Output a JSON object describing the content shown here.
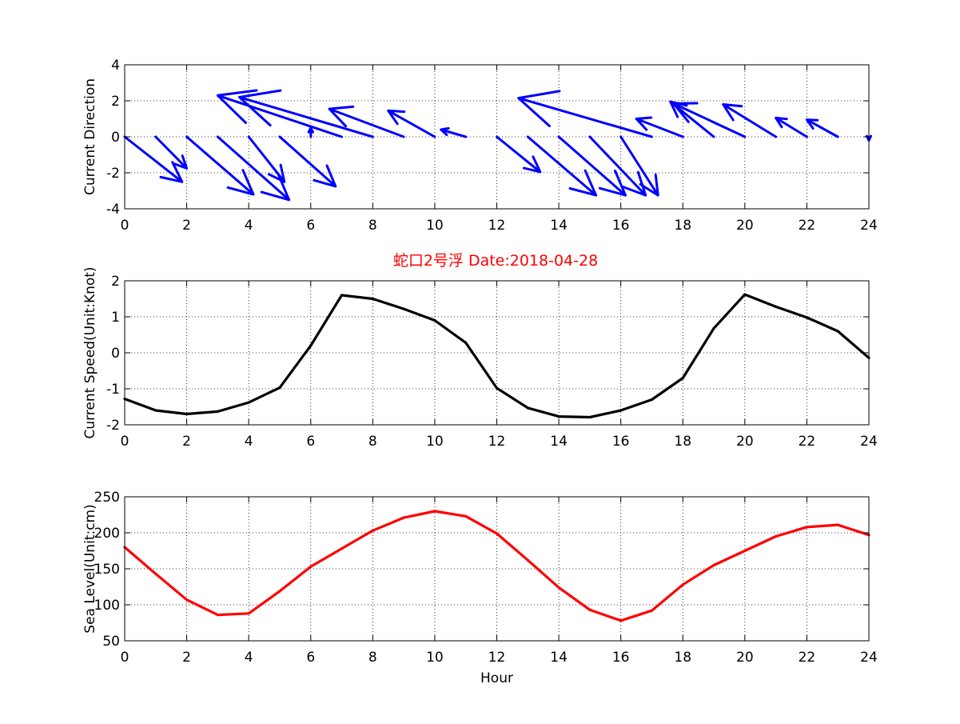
{
  "figure": {
    "title": "蛇口2号浮   Date:2018-04-28"
  },
  "chart_data": [
    {
      "type": "quiver",
      "ylabel": "Current Direction",
      "xlim": [
        0,
        24
      ],
      "ylim": [
        -4,
        4
      ],
      "x_ticks": [
        "0",
        "2",
        "4",
        "6",
        "8",
        "10",
        "12",
        "14",
        "16",
        "18",
        "20",
        "22",
        "24"
      ],
      "y_ticks": [
        "-4",
        "-2",
        "0",
        "2",
        "4"
      ],
      "grid": true,
      "color": "#0000ff",
      "vectors": [
        {
          "x": 0,
          "u": 1.85,
          "v": -2.5
        },
        {
          "x": 1,
          "u": 1.0,
          "v": -1.75
        },
        {
          "x": 2,
          "u": 2.15,
          "v": -3.2
        },
        {
          "x": 3,
          "u": 2.3,
          "v": -3.5
        },
        {
          "x": 4,
          "u": 1.15,
          "v": -2.5
        },
        {
          "x": 5,
          "u": 1.8,
          "v": -2.75
        },
        {
          "x": 6,
          "u": 0.0,
          "v": 0.5
        },
        {
          "x": 7,
          "u": -4.0,
          "v": 2.3
        },
        {
          "x": 8,
          "u": -4.3,
          "v": 2.2
        },
        {
          "x": 9,
          "u": -2.4,
          "v": 1.55
        },
        {
          "x": 10,
          "u": -1.5,
          "v": 1.45
        },
        {
          "x": 11,
          "u": -0.8,
          "v": 0.4
        },
        {
          "x": 12,
          "u": 1.4,
          "v": -1.95
        },
        {
          "x": 13,
          "u": 2.2,
          "v": -3.25
        },
        {
          "x": 14,
          "u": 2.15,
          "v": -3.25
        },
        {
          "x": 15,
          "u": 1.8,
          "v": -3.25
        },
        {
          "x": 16,
          "u": 1.2,
          "v": -3.25
        },
        {
          "x": 17,
          "u": -4.3,
          "v": 2.15
        },
        {
          "x": 18,
          "u": -1.5,
          "v": 1.0
        },
        {
          "x": 19,
          "u": -1.4,
          "v": 1.95
        },
        {
          "x": 20,
          "u": -2.3,
          "v": 1.85
        },
        {
          "x": 21,
          "u": -1.7,
          "v": 1.8
        },
        {
          "x": 22,
          "u": -1.0,
          "v": 1.05
        },
        {
          "x": 23,
          "u": -1.0,
          "v": 0.95
        },
        {
          "x": 24,
          "u": 0.0,
          "v": -0.2
        }
      ]
    },
    {
      "type": "line",
      "ylabel": "Current Speed(Unit:Knot)",
      "xlim": [
        0,
        24
      ],
      "ylim": [
        -2,
        2
      ],
      "x_ticks": [
        "0",
        "2",
        "4",
        "6",
        "8",
        "10",
        "12",
        "14",
        "16",
        "18",
        "20",
        "22",
        "24"
      ],
      "y_ticks": [
        "-2",
        "-1",
        "0",
        "1",
        "2"
      ],
      "grid": true,
      "color": "#000000",
      "x": [
        0,
        1,
        2,
        3,
        4,
        5,
        6,
        7,
        8,
        9,
        10,
        11,
        12,
        13,
        14,
        15,
        16,
        17,
        18,
        19,
        20,
        21,
        22,
        23,
        24
      ],
      "values": [
        -1.28,
        -1.6,
        -1.7,
        -1.63,
        -1.38,
        -0.97,
        0.2,
        1.6,
        1.5,
        1.22,
        0.9,
        0.28,
        -0.98,
        -1.53,
        -1.77,
        -1.79,
        -1.6,
        -1.3,
        -0.7,
        0.68,
        1.62,
        1.28,
        0.98,
        0.6,
        -0.14
      ]
    },
    {
      "type": "line",
      "xlabel": "Hour",
      "ylabel": "Sea Level(Unit:cm)",
      "xlim": [
        0,
        24
      ],
      "ylim": [
        50,
        250
      ],
      "x_ticks": [
        "0",
        "2",
        "4",
        "6",
        "8",
        "10",
        "12",
        "14",
        "16",
        "18",
        "20",
        "22",
        "24"
      ],
      "y_ticks": [
        "50",
        "100",
        "150",
        "200",
        "250"
      ],
      "grid": true,
      "color": "#ff0000",
      "x": [
        0,
        1,
        2,
        3,
        4,
        5,
        6,
        7,
        8,
        9,
        10,
        11,
        12,
        13,
        14,
        15,
        16,
        17,
        18,
        19,
        20,
        21,
        22,
        23,
        24
      ],
      "values": [
        180,
        143,
        107,
        86,
        88,
        119,
        153,
        178,
        203,
        221,
        230,
        223,
        199,
        162,
        124,
        93,
        78,
        92,
        128,
        155,
        175,
        195,
        208,
        211,
        197
      ]
    }
  ]
}
